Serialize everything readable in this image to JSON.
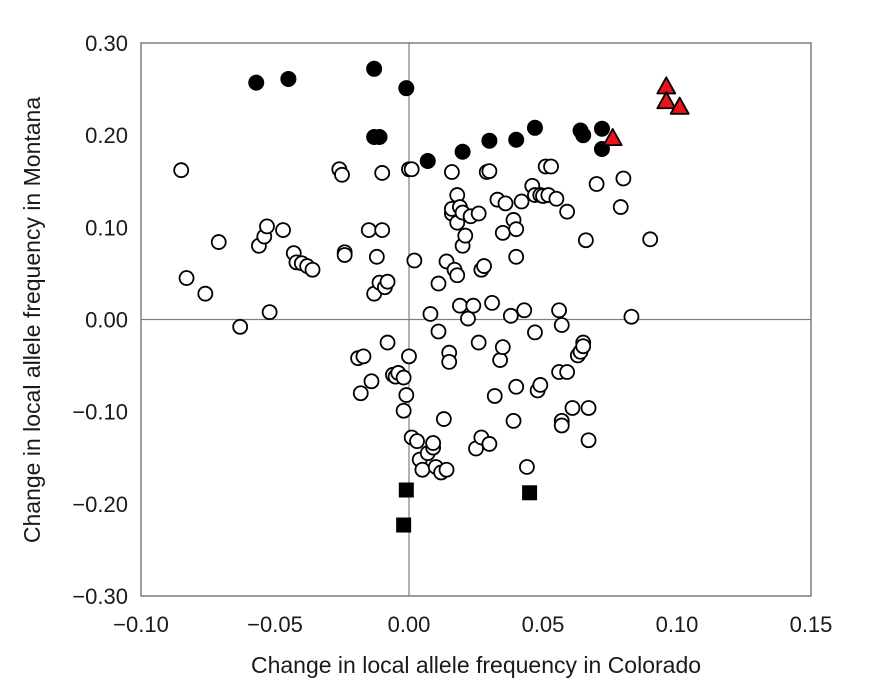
{
  "chart_data": {
    "type": "scatter",
    "title": "",
    "xlabel": "Change in local allele frequency in Colorado",
    "ylabel": "Change in local allele frequency in Montana",
    "xlim": [
      -0.1,
      0.15
    ],
    "ylim": [
      -0.3,
      0.3
    ],
    "xticks": [
      "−0.10",
      "−0.05",
      "0.00",
      "0.05",
      "0.10",
      "0.15"
    ],
    "yticks": [
      "−0.30",
      "−0.20",
      "−0.10",
      "0.00",
      "0.10",
      "0.20",
      "0.30"
    ],
    "grid": false,
    "reference_lines": {
      "x": 0,
      "y": 0
    },
    "colors": {
      "open": "#ffffff",
      "filled": "#000000",
      "triangle": "#e8141b"
    },
    "series": [
      {
        "marker": "open-circle",
        "points": [
          [
            -0.085,
            0.162
          ],
          [
            -0.083,
            0.045
          ],
          [
            -0.076,
            0.028
          ],
          [
            -0.071,
            0.084
          ],
          [
            -0.063,
            -0.008
          ],
          [
            -0.056,
            0.08
          ],
          [
            -0.054,
            0.09
          ],
          [
            -0.053,
            0.101
          ],
          [
            -0.052,
            0.008
          ],
          [
            -0.047,
            0.097
          ],
          [
            -0.043,
            0.072
          ],
          [
            -0.042,
            0.062
          ],
          [
            -0.04,
            0.061
          ],
          [
            -0.038,
            0.058
          ],
          [
            -0.036,
            0.054
          ],
          [
            -0.026,
            0.163
          ],
          [
            -0.025,
            0.157
          ],
          [
            -0.024,
            0.073
          ],
          [
            -0.024,
            0.07
          ],
          [
            -0.019,
            -0.042
          ],
          [
            -0.018,
            -0.08
          ],
          [
            -0.017,
            -0.04
          ],
          [
            -0.015,
            0.097
          ],
          [
            -0.014,
            -0.067
          ],
          [
            -0.013,
            0.028
          ],
          [
            -0.012,
            0.068
          ],
          [
            -0.011,
            0.04
          ],
          [
            -0.01,
            0.159
          ],
          [
            -0.01,
            0.097
          ],
          [
            -0.009,
            0.035
          ],
          [
            -0.008,
            0.041
          ],
          [
            -0.008,
            -0.025
          ],
          [
            -0.006,
            -0.06
          ],
          [
            -0.005,
            -0.062
          ],
          [
            -0.004,
            -0.058
          ],
          [
            -0.002,
            -0.063
          ],
          [
            -0.002,
            -0.099
          ],
          [
            -0.001,
            -0.082
          ],
          [
            0.0,
            0.163
          ],
          [
            0.001,
            0.163
          ],
          [
            0.0,
            -0.04
          ],
          [
            0.002,
            0.064
          ],
          [
            0.001,
            -0.128
          ],
          [
            0.003,
            -0.132
          ],
          [
            0.004,
            -0.152
          ],
          [
            0.005,
            -0.163
          ],
          [
            0.007,
            -0.145
          ],
          [
            0.008,
            0.006
          ],
          [
            0.009,
            -0.139
          ],
          [
            0.009,
            -0.134
          ],
          [
            0.01,
            -0.16
          ],
          [
            0.011,
            0.039
          ],
          [
            0.011,
            -0.013
          ],
          [
            0.012,
            -0.166
          ],
          [
            0.013,
            -0.108
          ],
          [
            0.014,
            -0.163
          ],
          [
            0.014,
            0.063
          ],
          [
            0.015,
            -0.036
          ],
          [
            0.015,
            -0.046
          ],
          [
            0.016,
            0.16
          ],
          [
            0.016,
            0.115
          ],
          [
            0.016,
            0.12
          ],
          [
            0.017,
            0.054
          ],
          [
            0.018,
            0.048
          ],
          [
            0.018,
            0.135
          ],
          [
            0.018,
            0.105
          ],
          [
            0.019,
            0.015
          ],
          [
            0.019,
            0.122
          ],
          [
            0.02,
            0.116
          ],
          [
            0.02,
            0.08
          ],
          [
            0.021,
            0.091
          ],
          [
            0.022,
            0.001
          ],
          [
            0.023,
            0.112
          ],
          [
            0.024,
            0.015
          ],
          [
            0.025,
            -0.14
          ],
          [
            0.026,
            0.115
          ],
          [
            0.026,
            -0.025
          ],
          [
            0.027,
            -0.128
          ],
          [
            0.027,
            0.054
          ],
          [
            0.028,
            0.058
          ],
          [
            0.029,
            0.16
          ],
          [
            0.03,
            0.161
          ],
          [
            0.03,
            -0.135
          ],
          [
            0.031,
            0.018
          ],
          [
            0.032,
            -0.083
          ],
          [
            0.033,
            0.13
          ],
          [
            0.034,
            -0.044
          ],
          [
            0.035,
            -0.03
          ],
          [
            0.035,
            0.094
          ],
          [
            0.036,
            0.126
          ],
          [
            0.038,
            0.004
          ],
          [
            0.039,
            -0.11
          ],
          [
            0.039,
            0.108
          ],
          [
            0.04,
            0.098
          ],
          [
            0.04,
            0.068
          ],
          [
            0.04,
            -0.073
          ],
          [
            0.042,
            0.128
          ],
          [
            0.043,
            0.01
          ],
          [
            0.044,
            -0.16
          ],
          [
            0.046,
            0.145
          ],
          [
            0.047,
            0.135
          ],
          [
            0.047,
            -0.014
          ],
          [
            0.048,
            -0.077
          ],
          [
            0.049,
            -0.071
          ],
          [
            0.049,
            0.135
          ],
          [
            0.05,
            0.134
          ],
          [
            0.051,
            0.166
          ],
          [
            0.052,
            0.135
          ],
          [
            0.053,
            0.166
          ],
          [
            0.055,
            0.131
          ],
          [
            0.056,
            -0.057
          ],
          [
            0.056,
            0.01
          ],
          [
            0.057,
            -0.006
          ],
          [
            0.057,
            -0.11
          ],
          [
            0.057,
            -0.115
          ],
          [
            0.059,
            -0.057
          ],
          [
            0.059,
            0.117
          ],
          [
            0.061,
            -0.096
          ],
          [
            0.063,
            -0.039
          ],
          [
            0.064,
            -0.035
          ],
          [
            0.065,
            -0.025
          ],
          [
            0.065,
            -0.029
          ],
          [
            0.066,
            0.086
          ],
          [
            0.067,
            -0.131
          ],
          [
            0.067,
            -0.096
          ],
          [
            0.07,
            0.147
          ],
          [
            0.079,
            0.122
          ],
          [
            0.08,
            0.153
          ],
          [
            0.09,
            0.087
          ],
          [
            0.083,
            0.003
          ]
        ]
      },
      {
        "marker": "filled-circle",
        "points": [
          [
            -0.057,
            0.257
          ],
          [
            -0.045,
            0.261
          ],
          [
            -0.013,
            0.272
          ],
          [
            -0.013,
            0.198
          ],
          [
            -0.011,
            0.198
          ],
          [
            -0.001,
            0.251
          ],
          [
            0.007,
            0.172
          ],
          [
            0.02,
            0.182
          ],
          [
            0.03,
            0.194
          ],
          [
            0.04,
            0.195
          ],
          [
            0.047,
            0.208
          ],
          [
            0.064,
            0.205
          ],
          [
            0.065,
            0.2
          ],
          [
            0.072,
            0.207
          ],
          [
            0.072,
            0.185
          ]
        ]
      },
      {
        "marker": "filled-square",
        "points": [
          [
            -0.001,
            -0.185
          ],
          [
            -0.002,
            -0.223
          ],
          [
            0.045,
            -0.188
          ]
        ]
      },
      {
        "marker": "red-triangle",
        "points": [
          [
            0.076,
            0.197
          ],
          [
            0.096,
            0.253
          ],
          [
            0.096,
            0.237
          ],
          [
            0.101,
            0.231
          ]
        ]
      }
    ]
  }
}
